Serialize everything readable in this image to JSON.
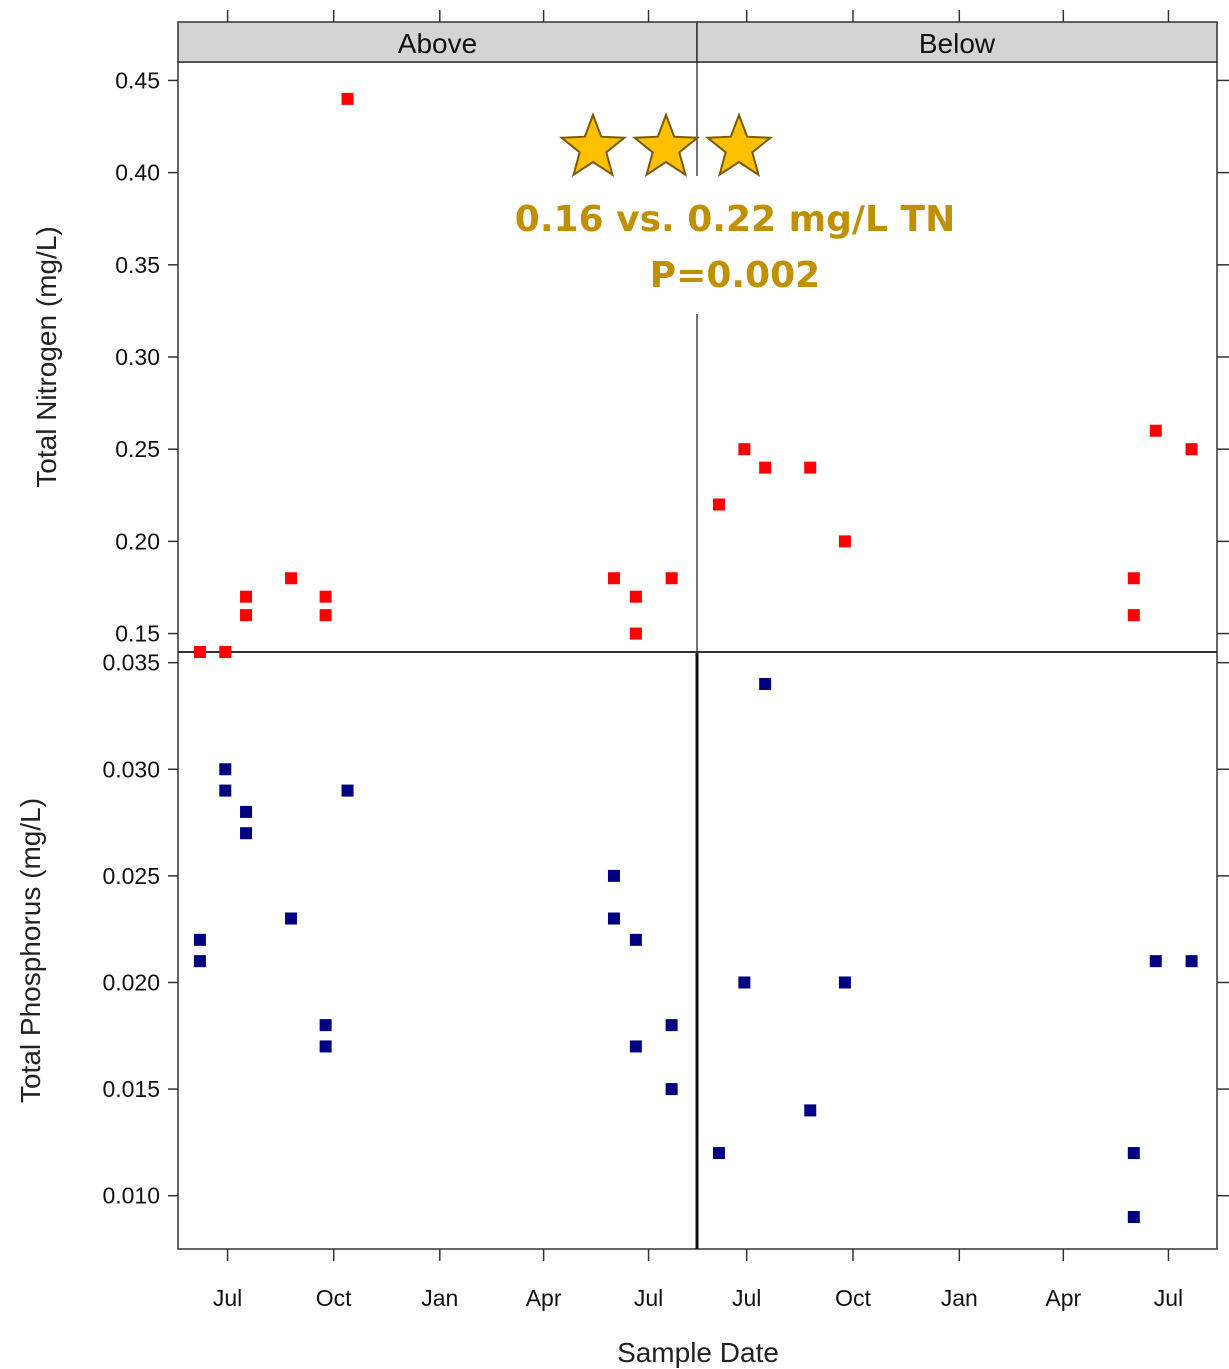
{
  "chart_data": {
    "type": "scatter",
    "xlabel": "Sample Date",
    "panels": [
      "Above",
      "Below"
    ],
    "x_ticks": {
      "Above": [
        "Jul",
        "Oct",
        "Jan",
        "Apr",
        "Jul"
      ],
      "Below": [
        "Jul",
        "Oct",
        "Jan",
        "Apr",
        "Jul"
      ]
    },
    "rows": [
      {
        "ylabel": "Total Nitrogen (mg/L)",
        "ylim": [
          0.14,
          0.46
        ],
        "yticks": [
          "0.15",
          "0.20",
          "0.25",
          "0.30",
          "0.35",
          "0.40",
          "0.45"
        ],
        "color": "#ff0000",
        "series": {
          "Above": [
            {
              "x": "2014-06-07",
              "y": 0.14
            },
            {
              "x": "2014-06-29",
              "y": 0.14
            },
            {
              "x": "2014-07-17",
              "y": 0.16
            },
            {
              "x": "2014-07-17",
              "y": 0.17
            },
            {
              "x": "2014-08-25",
              "y": 0.18
            },
            {
              "x": "2014-09-24",
              "y": 0.16
            },
            {
              "x": "2014-09-24",
              "y": 0.17
            },
            {
              "x": "2014-10-13",
              "y": 0.44
            },
            {
              "x": "2015-06-01",
              "y": 0.18
            },
            {
              "x": "2015-06-20",
              "y": 0.15
            },
            {
              "x": "2015-06-20",
              "y": 0.17
            },
            {
              "x": "2015-07-21",
              "y": 0.18
            }
          ],
          "Below": [
            {
              "x": "2014-06-07",
              "y": 0.22
            },
            {
              "x": "2014-06-29",
              "y": 0.25
            },
            {
              "x": "2014-07-17",
              "y": 0.24
            },
            {
              "x": "2014-08-25",
              "y": 0.24
            },
            {
              "x": "2014-09-24",
              "y": 0.2
            },
            {
              "x": "2015-06-01",
              "y": 0.16
            },
            {
              "x": "2015-06-01",
              "y": 0.18
            },
            {
              "x": "2015-06-20",
              "y": 0.26
            },
            {
              "x": "2015-07-21",
              "y": 0.25
            }
          ]
        }
      },
      {
        "ylabel": "Total Phosphorus (mg/L)",
        "ylim": [
          0.0075,
          0.0355
        ],
        "yticks": [
          "0.010",
          "0.015",
          "0.020",
          "0.025",
          "0.030",
          "0.035"
        ],
        "color": "#000080",
        "series": {
          "Above": [
            {
              "x": "2014-06-07",
              "y": 0.021
            },
            {
              "x": "2014-06-07",
              "y": 0.022
            },
            {
              "x": "2014-06-29",
              "y": 0.029
            },
            {
              "x": "2014-06-29",
              "y": 0.03
            },
            {
              "x": "2014-07-17",
              "y": 0.027
            },
            {
              "x": "2014-07-17",
              "y": 0.028
            },
            {
              "x": "2014-08-25",
              "y": 0.023
            },
            {
              "x": "2014-09-24",
              "y": 0.017
            },
            {
              "x": "2014-09-24",
              "y": 0.018
            },
            {
              "x": "2014-10-13",
              "y": 0.029
            },
            {
              "x": "2015-06-01",
              "y": 0.023
            },
            {
              "x": "2015-06-01",
              "y": 0.025
            },
            {
              "x": "2015-06-20",
              "y": 0.017
            },
            {
              "x": "2015-06-20",
              "y": 0.022
            },
            {
              "x": "2015-07-21",
              "y": 0.015
            },
            {
              "x": "2015-07-21",
              "y": 0.018
            }
          ],
          "Below": [
            {
              "x": "2014-06-07",
              "y": 0.012
            },
            {
              "x": "2014-06-29",
              "y": 0.02
            },
            {
              "x": "2014-07-17",
              "y": 0.034
            },
            {
              "x": "2014-08-25",
              "y": 0.014
            },
            {
              "x": "2014-09-24",
              "y": 0.02
            },
            {
              "x": "2015-06-01",
              "y": 0.009
            },
            {
              "x": "2015-06-01",
              "y": 0.012
            },
            {
              "x": "2015-06-20",
              "y": 0.021
            },
            {
              "x": "2015-07-21",
              "y": 0.021
            }
          ]
        }
      }
    ],
    "annotation": {
      "line1": "0.16 vs. 0.22 mg/L TN",
      "line2": "P=0.002",
      "stars": 3,
      "color": "#c09000",
      "star_fill": "#ffc000"
    }
  }
}
